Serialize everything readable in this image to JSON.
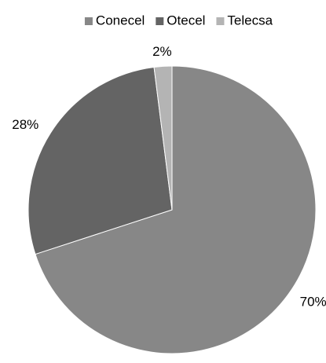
{
  "chart_data": {
    "type": "pie",
    "title": "",
    "legend_position": "top",
    "series": [
      {
        "name": "Conecel",
        "value": 70,
        "label": "70%",
        "color": "#878787"
      },
      {
        "name": "Otecel",
        "value": 28,
        "label": "28%",
        "color": "#646464"
      },
      {
        "name": "Telecsa",
        "value": 2,
        "label": "2%",
        "color": "#b4b4b4"
      }
    ]
  }
}
